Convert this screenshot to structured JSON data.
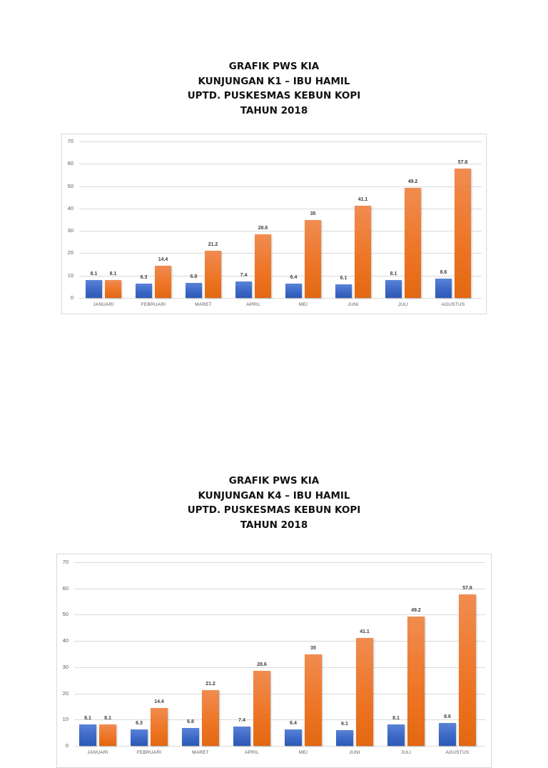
{
  "chart_data": [
    {
      "type": "bar",
      "title": "GRAFIK PWS KIA\nKUNJUNGAN K1 – IBU HAMIL\nUPTD. PUSKESMAS KEBUN KOPI\nTAHUN 2018",
      "title_lines": [
        "GRAFIK PWS KIA",
        "KUNJUNGAN K1 – IBU HAMIL",
        "UPTD. PUSKESMAS KEBUN KOPI",
        "TAHUN 2018"
      ],
      "categories": [
        "JANUARI",
        "FEBRUARI",
        "MARET",
        "APRIL",
        "MEI",
        "JUNI",
        "JULI",
        "AGUSTUS"
      ],
      "series": [
        {
          "name": "Series 1 (blue)",
          "color": "#4472C4",
          "values": [
            8.1,
            6.3,
            6.8,
            7.4,
            6.4,
            6.1,
            8.1,
            8.6
          ],
          "labels": [
            "8.1",
            "6.3",
            "6.8",
            "7.4",
            "6.4",
            "6.1",
            "8.1",
            "8.6"
          ]
        },
        {
          "name": "Series 2 (orange)",
          "color": "#ED7D31",
          "values": [
            8.1,
            14.4,
            21.2,
            28.6,
            35,
            41.1,
            49.2,
            57.8
          ],
          "labels": [
            "8.1",
            "14.4",
            "21.2",
            "28.6",
            "35",
            "41.1",
            "49.2",
            "57.8"
          ]
        }
      ],
      "yticks": [
        "0",
        "10",
        "20",
        "30",
        "40",
        "50",
        "60",
        "70"
      ],
      "xlabel": "",
      "ylabel": "",
      "ylim": [
        0,
        70
      ],
      "grid": true,
      "legend": "none"
    },
    {
      "type": "bar",
      "title": "GRAFIK PWS KIA\nKUNJUNGAN K4 – IBU HAMIL\nUPTD. PUSKESMAS KEBUN KOPI\nTAHUN 2018",
      "title_lines": [
        "GRAFIK PWS KIA",
        "KUNJUNGAN K4 – IBU HAMIL",
        "UPTD. PUSKESMAS KEBUN KOPI",
        "TAHUN 2018"
      ],
      "categories": [
        "JANUARI",
        "FEBRUARI",
        "MARET",
        "APRIL",
        "MEI",
        "JUNI",
        "JULI",
        "AGUSTUS"
      ],
      "series": [
        {
          "name": "Series 1 (blue)",
          "color": "#4472C4",
          "values": [
            8.1,
            6.3,
            6.8,
            7.4,
            6.4,
            6.1,
            8.1,
            8.6
          ],
          "labels": [
            "8.1",
            "6.3",
            "6.8",
            "7.4",
            "6.4",
            "6.1",
            "8.1",
            "8.6"
          ]
        },
        {
          "name": "Series 2 (orange)",
          "color": "#ED7D31",
          "values": [
            8.1,
            14.4,
            21.2,
            28.6,
            35,
            41.1,
            49.2,
            57.8
          ],
          "labels": [
            "8.1",
            "14.4",
            "21.2",
            "28.6",
            "35",
            "41.1",
            "49.2",
            "57.8"
          ]
        }
      ],
      "yticks": [
        "0",
        "10",
        "20",
        "30",
        "40",
        "50",
        "60",
        "70"
      ],
      "xlabel": "",
      "ylabel": "",
      "ylim": [
        0,
        70
      ],
      "grid": true,
      "legend": "none"
    }
  ]
}
